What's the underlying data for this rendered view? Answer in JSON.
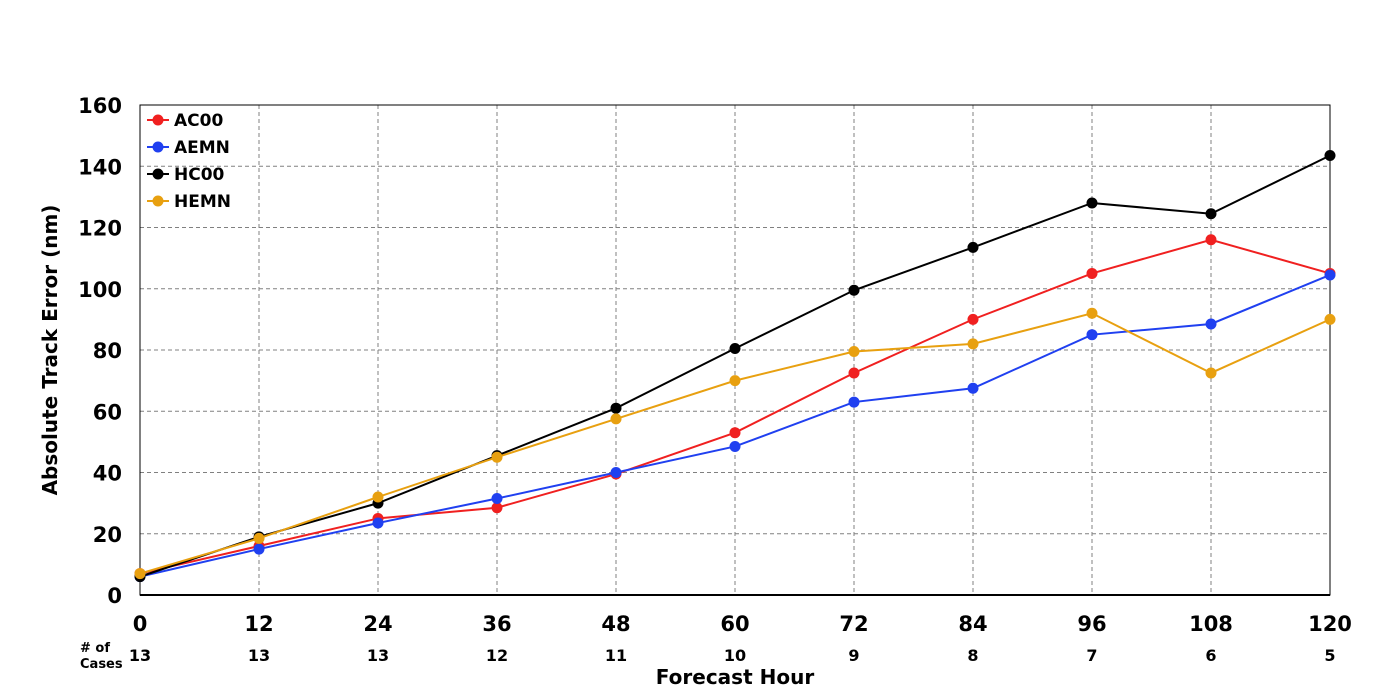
{
  "chart_data": {
    "type": "line",
    "title": "",
    "xlabel": "Forecast Hour",
    "ylabel": "Absolute Track Error (nm)",
    "x": [
      0,
      12,
      24,
      36,
      48,
      60,
      72,
      84,
      96,
      108,
      120
    ],
    "xlim": [
      0,
      120
    ],
    "ylim": [
      0,
      160
    ],
    "yticks": [
      0,
      20,
      40,
      60,
      80,
      100,
      120,
      140,
      160
    ],
    "grid": true,
    "legend_position": "top-left",
    "cases_label_line1": "# of",
    "cases_label_line2": "Cases",
    "cases": [
      13,
      13,
      13,
      12,
      11,
      10,
      9,
      8,
      7,
      6,
      5
    ],
    "series": [
      {
        "name": "AC00",
        "color": "#f02020",
        "values": [
          7,
          16,
          25,
          28.5,
          39.5,
          53,
          72.5,
          90,
          105,
          116,
          105
        ]
      },
      {
        "name": "AEMN",
        "color": "#2040f0",
        "values": [
          6,
          15,
          23.5,
          31.5,
          40,
          48.5,
          63,
          67.5,
          85,
          88.5,
          104.5
        ]
      },
      {
        "name": "HC00",
        "color": "#000000",
        "values": [
          6,
          19,
          30,
          45.5,
          61,
          80.5,
          99.5,
          113.5,
          128,
          124.5,
          143.5
        ]
      },
      {
        "name": "HEMN",
        "color": "#e8a010",
        "values": [
          7,
          18.5,
          32,
          45,
          57.5,
          70,
          79.5,
          82,
          92,
          72.5,
          90
        ]
      }
    ]
  }
}
